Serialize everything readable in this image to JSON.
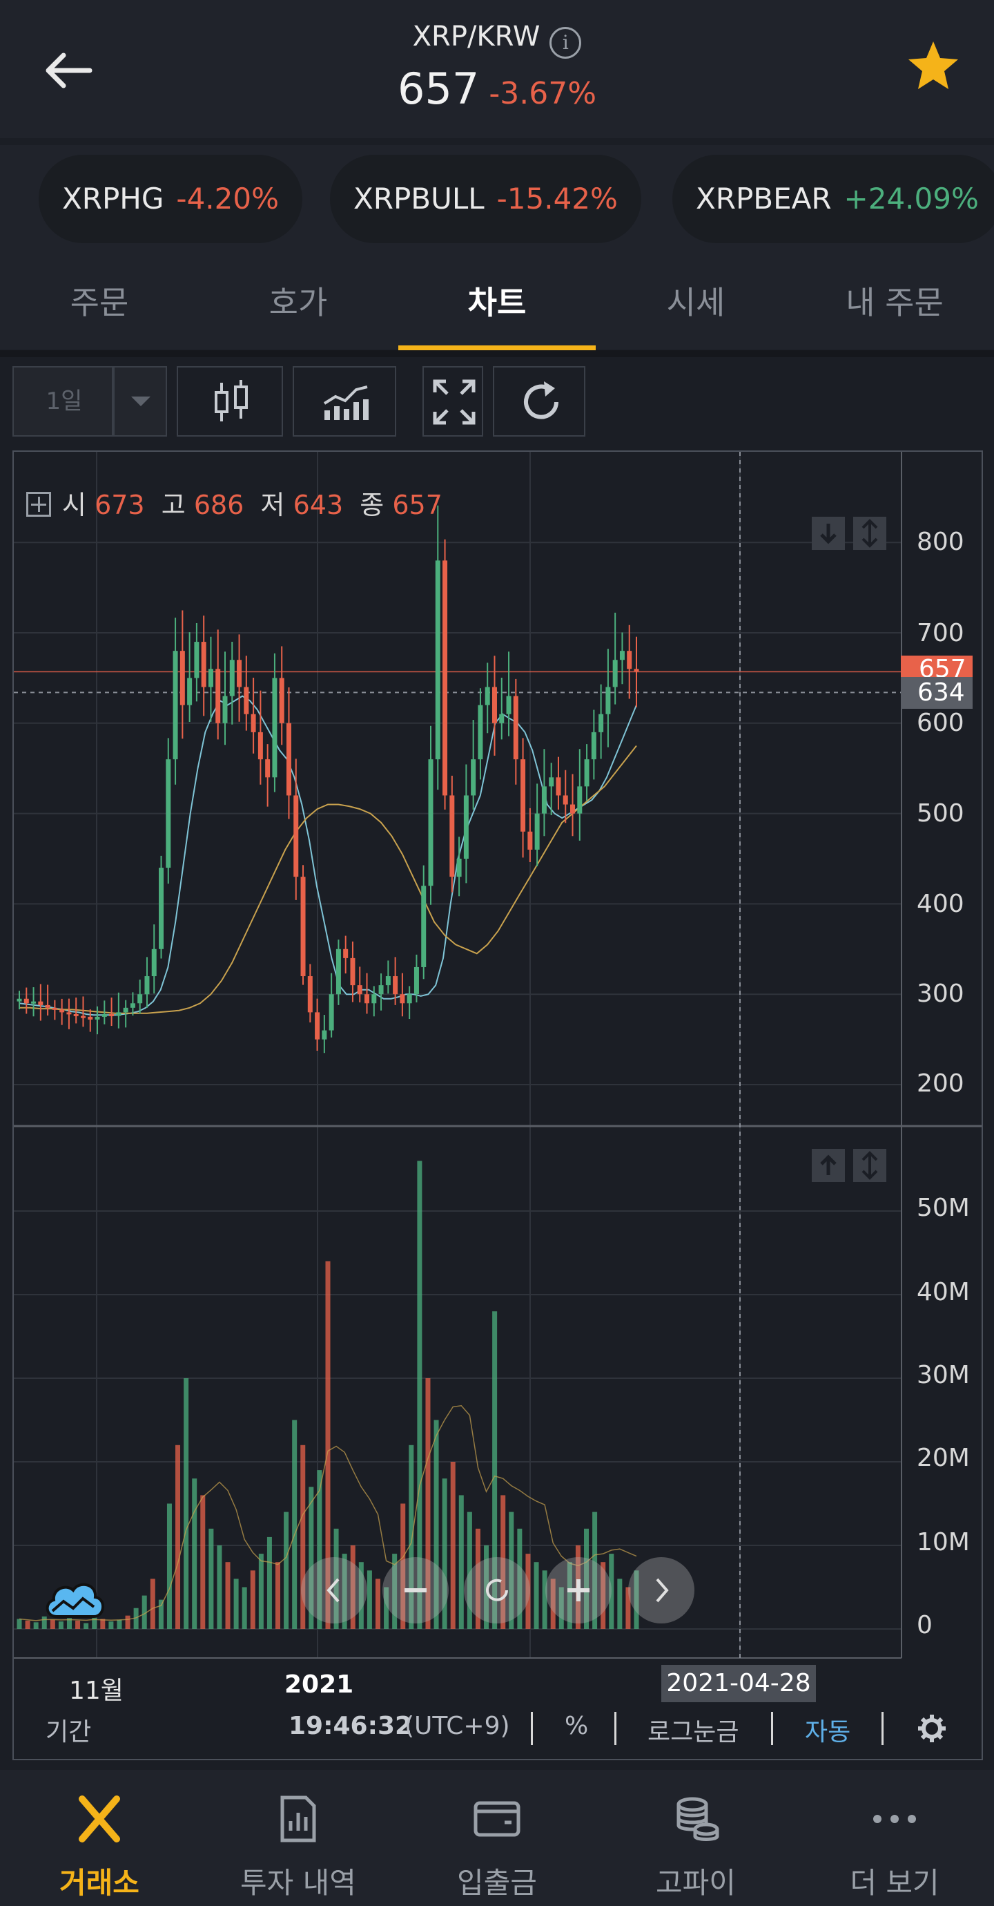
{
  "header": {
    "pair": "XRP/KRW",
    "info_icon": "info-icon",
    "price": "657",
    "change": "-3.67%",
    "star_color": "#f5b319"
  },
  "chips": [
    {
      "name": "XRPHG",
      "change": "-4.20%",
      "dir": "down"
    },
    {
      "name": "XRPBULL",
      "change": "-15.42%",
      "dir": "down"
    },
    {
      "name": "XRPBEAR",
      "change": "+24.09%",
      "dir": "up"
    }
  ],
  "tabs": [
    {
      "label": "주문",
      "active": false
    },
    {
      "label": "호가",
      "active": false
    },
    {
      "label": "차트",
      "active": true
    },
    {
      "label": "시세",
      "active": false
    },
    {
      "label": "내 주문",
      "active": false
    }
  ],
  "toolbar": {
    "period": "1일",
    "icons": [
      "candlestick-icon",
      "indicator-icon",
      "fullscreen-icon",
      "refresh-icon"
    ]
  },
  "ohlc": {
    "open_label": "시",
    "open": "673",
    "high_label": "고",
    "high": "686",
    "low_label": "저",
    "low": "643",
    "close_label": "종",
    "close": "657"
  },
  "colors": {
    "up": "#4caf7d",
    "down": "#e8624a",
    "accent": "#f5b319",
    "ma_short": "#7fc4d6",
    "ma_long": "#c9a24e",
    "link": "#5fb0e8"
  },
  "chart_data": [
    {
      "type": "candlestick",
      "price_ticks": [
        "800",
        "700",
        "600",
        "500",
        "400",
        "300",
        "200"
      ],
      "ylim": [
        160,
        870
      ],
      "current_price": "657",
      "crosshair_price": "634",
      "x_ticks": [
        "11월",
        "2021"
      ],
      "crosshair_date": "2021-04-28",
      "closes_approx": [
        295,
        290,
        292,
        288,
        285,
        283,
        280,
        278,
        276,
        275,
        272,
        275,
        278,
        276,
        280,
        285,
        290,
        300,
        320,
        350,
        440,
        560,
        680,
        620,
        650,
        690,
        640,
        660,
        600,
        630,
        670,
        640,
        610,
        590,
        560,
        540,
        650,
        600,
        520,
        430,
        320,
        280,
        250,
        260,
        300,
        350,
        340,
        310,
        300,
        290,
        300,
        310,
        320,
        300,
        290,
        300,
        330,
        420,
        560,
        780,
        520,
        430,
        450,
        520,
        560,
        620,
        640,
        600,
        610,
        630,
        560,
        480,
        460,
        500,
        530,
        540,
        520,
        510,
        500,
        530,
        560,
        590,
        610,
        640,
        670,
        680,
        660,
        657
      ],
      "ma_short_approx": [
        290,
        289,
        288,
        287,
        286,
        284,
        283,
        281,
        280,
        278,
        277,
        277,
        277,
        277,
        278,
        279,
        281,
        285,
        292,
        305,
        330,
        380,
        440,
        500,
        550,
        590,
        610,
        625,
        620,
        625,
        630,
        625,
        615,
        600,
        585,
        570,
        560,
        540,
        510,
        470,
        420,
        380,
        340,
        310,
        300,
        300,
        305,
        305,
        300,
        295,
        295,
        297,
        300,
        300,
        298,
        300,
        310,
        340,
        400,
        450,
        480,
        500,
        520,
        560,
        600,
        610,
        605,
        600,
        590,
        570,
        540,
        510,
        500,
        495,
        500,
        505,
        510,
        515,
        525,
        540,
        560,
        580,
        600,
        620
      ],
      "ma_long_approx": [
        285,
        285,
        284,
        284,
        283,
        283,
        282,
        281,
        280,
        279,
        279,
        279,
        279,
        280,
        281,
        282,
        285,
        290,
        300,
        315,
        335,
        360,
        385,
        410,
        435,
        460,
        480,
        495,
        505,
        510,
        510,
        508,
        505,
        500,
        490,
        475,
        455,
        430,
        405,
        380,
        365,
        355,
        350,
        345,
        355,
        370,
        390,
        410,
        430,
        450,
        470,
        490,
        500,
        510,
        520,
        530,
        545,
        560,
        575
      ],
      "series": [
        {
          "name": "",
          "values": []
        }
      ]
    },
    {
      "type": "bar",
      "title": "",
      "y_ticks": [
        "50M",
        "40M",
        "30M",
        "20M",
        "10M",
        "0"
      ],
      "ylim": [
        0,
        58
      ],
      "volumes_approx_m": [
        1.2,
        1.0,
        0.8,
        1.5,
        1.1,
        0.9,
        1.3,
        1.0,
        0.7,
        1.4,
        1.2,
        0.9,
        1.1,
        1.6,
        2.5,
        4.0,
        6.0,
        3.5,
        15,
        22,
        30,
        18,
        16,
        12,
        10,
        8,
        6,
        5,
        7,
        9,
        11,
        8,
        14,
        25,
        22,
        17,
        19,
        44,
        12,
        9,
        10,
        8,
        7,
        6,
        5,
        9,
        15,
        22,
        56,
        30,
        25,
        18,
        20,
        16,
        14,
        12,
        10,
        38,
        16,
        14,
        12,
        9,
        8,
        7,
        6,
        5,
        8,
        10,
        12,
        14,
        8,
        9,
        6,
        5,
        7
      ]
    }
  ],
  "footer": {
    "period_label": "기간",
    "time": "19:46:32",
    "timezone": "(UTC+9)",
    "percent": "%",
    "log": "로그눈금",
    "auto": "자동",
    "settings_icon": "gear-icon"
  },
  "nav": [
    {
      "label": "거래소",
      "icon": "exchange-icon",
      "active": true
    },
    {
      "label": "투자 내역",
      "icon": "report-icon",
      "active": false
    },
    {
      "label": "입출금",
      "icon": "wallet-icon",
      "active": false
    },
    {
      "label": "고파이",
      "icon": "coins-icon",
      "active": false
    },
    {
      "label": "더 보기",
      "icon": "more-icon",
      "active": false
    }
  ]
}
